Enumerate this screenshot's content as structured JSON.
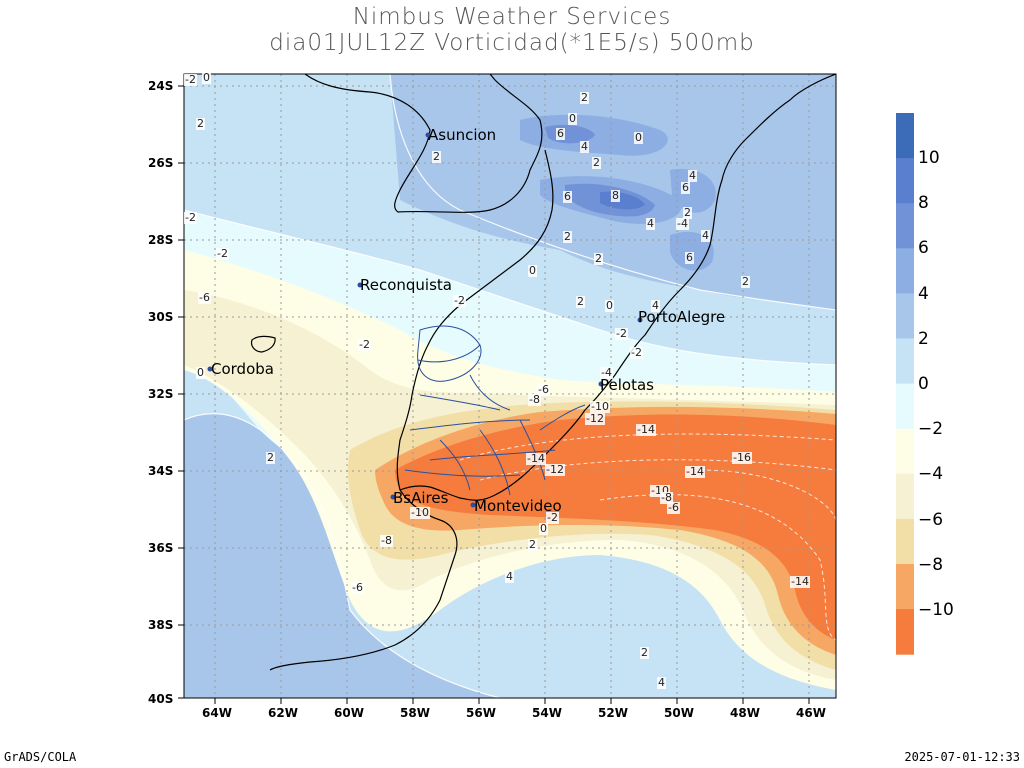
{
  "title_line1": "Nimbus Weather Services",
  "title_line2": "dia01JUL12Z Vorticidad(*1E5/s) 500mb",
  "footer_left": "GrADS/COLA",
  "footer_right": "2025-07-01-12:33",
  "lat_labels": [
    "24S",
    "26S",
    "28S",
    "30S",
    "32S",
    "34S",
    "36S",
    "38S",
    "40S"
  ],
  "lon_labels": [
    "64W",
    "62W",
    "60W",
    "58W",
    "56W",
    "54W",
    "52W",
    "50W",
    "48W",
    "46W"
  ],
  "colorbar": {
    "labels": [
      "10",
      "8",
      "6",
      "4",
      "2",
      "0",
      "−2",
      "−4",
      "−6",
      "−8",
      "−10"
    ],
    "colors": [
      "#3c6bb8",
      "#5a7fce",
      "#7292d8",
      "#8caee2",
      "#a8c6ea",
      "#c6e3f6",
      "#e6fbfd",
      "#fefee6",
      "#f6f1d2",
      "#f2dfa8",
      "#f7a764",
      "#f67c3e"
    ]
  },
  "cities": {
    "asuncion": "Asuncion",
    "reconquista": "Reconquista",
    "cordoba": "Cordoba",
    "portoalegre": "PortoAlegre",
    "pelotas": "Pelotas",
    "bsaires": "BsAires",
    "montevideo": "Montevideo"
  },
  "contour_labels": [
    "-2",
    "0",
    "2",
    "-2",
    "2",
    "0",
    "2",
    "6",
    "4",
    "0",
    "-4",
    "2",
    "6",
    "8",
    "4",
    "2",
    "4",
    "6",
    "2",
    "-2",
    "0",
    "2",
    "4",
    "6",
    "-6",
    "-2",
    "0",
    "2",
    "2",
    "0",
    "4",
    "-2",
    "-2",
    "-2",
    "-4",
    "-6",
    "-8",
    "-10",
    "-12",
    "-14",
    "-16",
    "-14",
    "-14",
    "-12",
    "-10",
    "-8",
    "-6",
    "-10",
    "-8",
    "-6",
    "-2",
    "0",
    "2",
    "4",
    "2",
    "4",
    "-14",
    "2"
  ]
}
